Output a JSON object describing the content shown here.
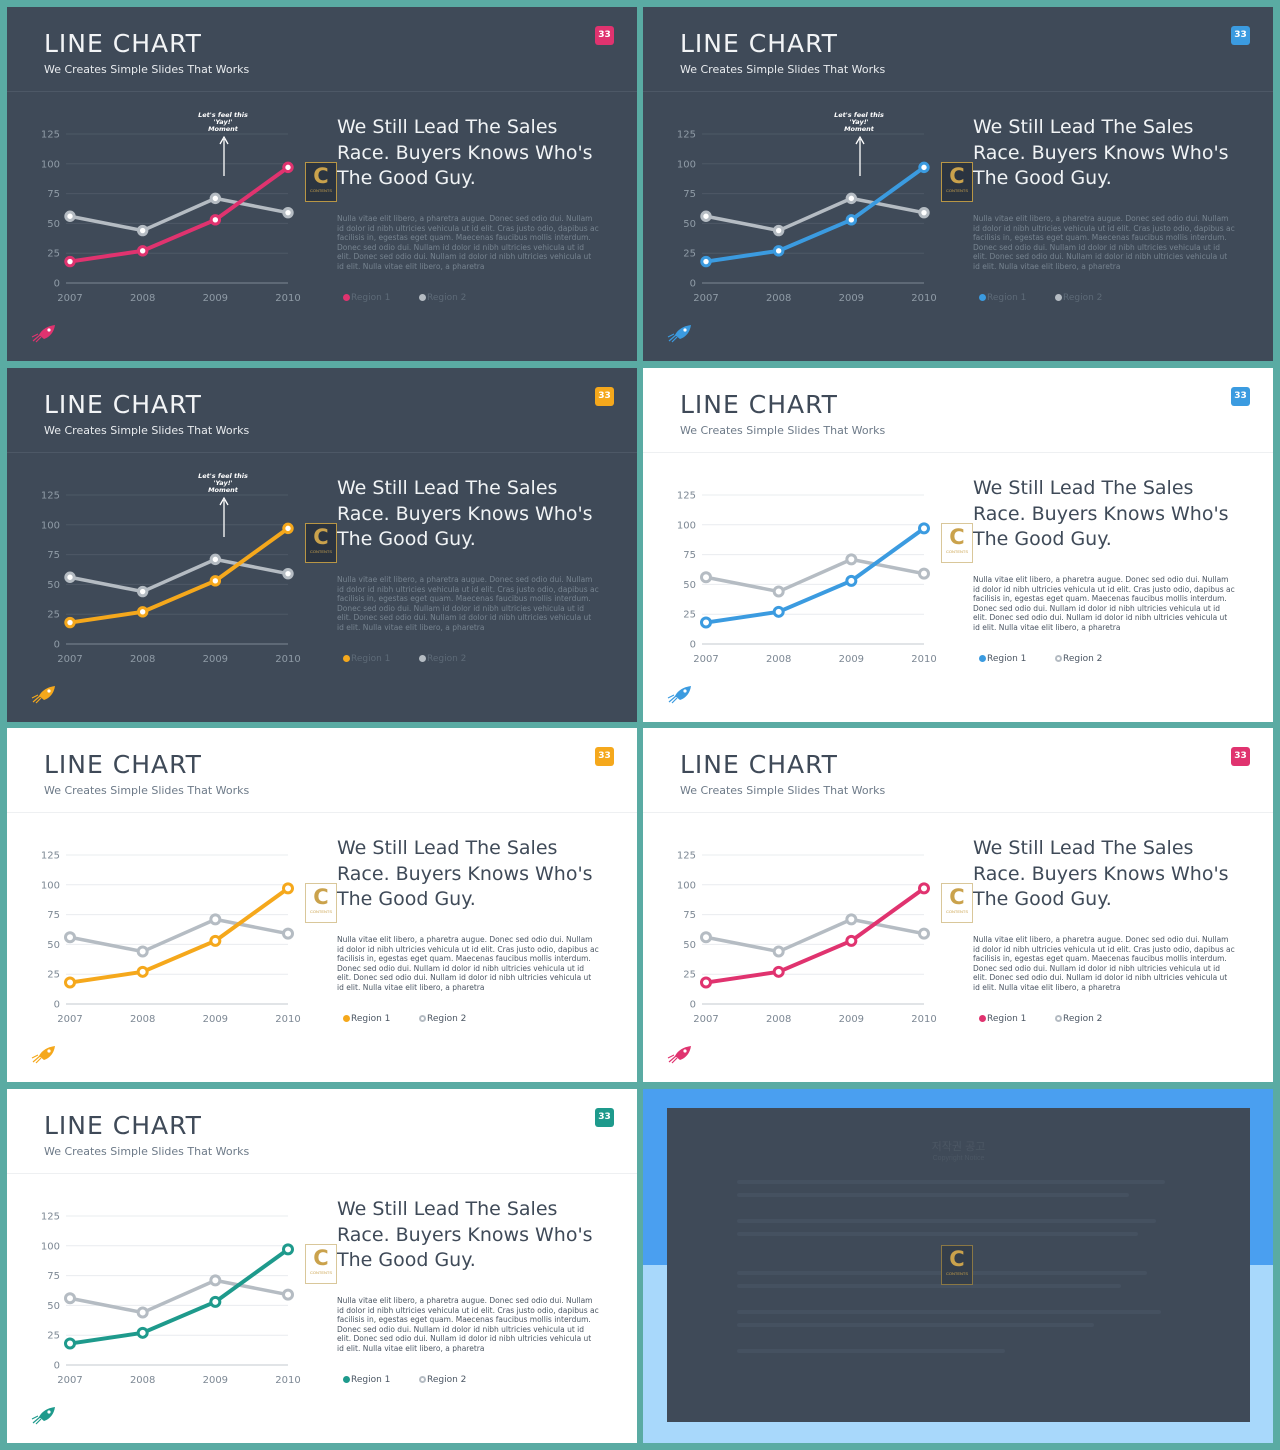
{
  "slide_common": {
    "title": "LINE CHART",
    "subtitle": "We Creates Simple Slides That Works",
    "page_number": "33",
    "headline": "We Still Lead The Sales Race. Buyers Knows Who's The Good Guy.",
    "body": "Nulla vitae elit libero, a pharetra augue. Donec sed odio dui. Nullam id dolor id nibh ultricies vehicula ut id elit. Cras justo odio, dapibus ac facilisis in, egestas eget quam. Maecenas faucibus mollis interdum. Donec sed odio dui. Nullam id dolor id nibh ultricies vehicula ut id elit. Donec sed odio dui. Nullam id dolor id nibh ultricies vehicula ut id elit. Nulla vitae elit libero, a pharetra",
    "annotation": "Let's feel this 'Yay!' Moment",
    "logo_letter": "C",
    "logo_text": "CONTENTS"
  },
  "slides": [
    {
      "theme": "dark",
      "accent": "#e0336f",
      "annotation": true
    },
    {
      "theme": "dark",
      "accent": "#3b9be0",
      "annotation": true
    },
    {
      "theme": "dark",
      "accent": "#f5a81c",
      "annotation": true
    },
    {
      "theme": "light",
      "accent": "#3b9be0",
      "annotation": false
    },
    {
      "theme": "light",
      "accent": "#f5a81c",
      "annotation": false
    },
    {
      "theme": "light",
      "accent": "#e0336f",
      "annotation": false
    },
    {
      "theme": "light",
      "accent": "#1e9a8c",
      "annotation": false
    }
  ],
  "chart_data": {
    "type": "line",
    "categories": [
      "2007",
      "2008",
      "2009",
      "2010"
    ],
    "series": [
      {
        "name": "Region 1",
        "values": [
          18,
          27,
          53,
          97
        ]
      },
      {
        "name": "Region 2",
        "values": [
          56,
          44,
          71,
          59
        ]
      }
    ],
    "yticks": [
      "0",
      "25",
      "50",
      "75",
      "100",
      "125"
    ],
    "ylim": [
      0,
      125
    ],
    "series2_color": "#b5bcc3",
    "grid": true
  },
  "copyright": {
    "title": "저작권 공고",
    "subtitle": "Copyright Notice"
  },
  "colors": {
    "background": "#5aaba3",
    "dark_slide": "#3f4a58",
    "light_slide": "#ffffff"
  }
}
